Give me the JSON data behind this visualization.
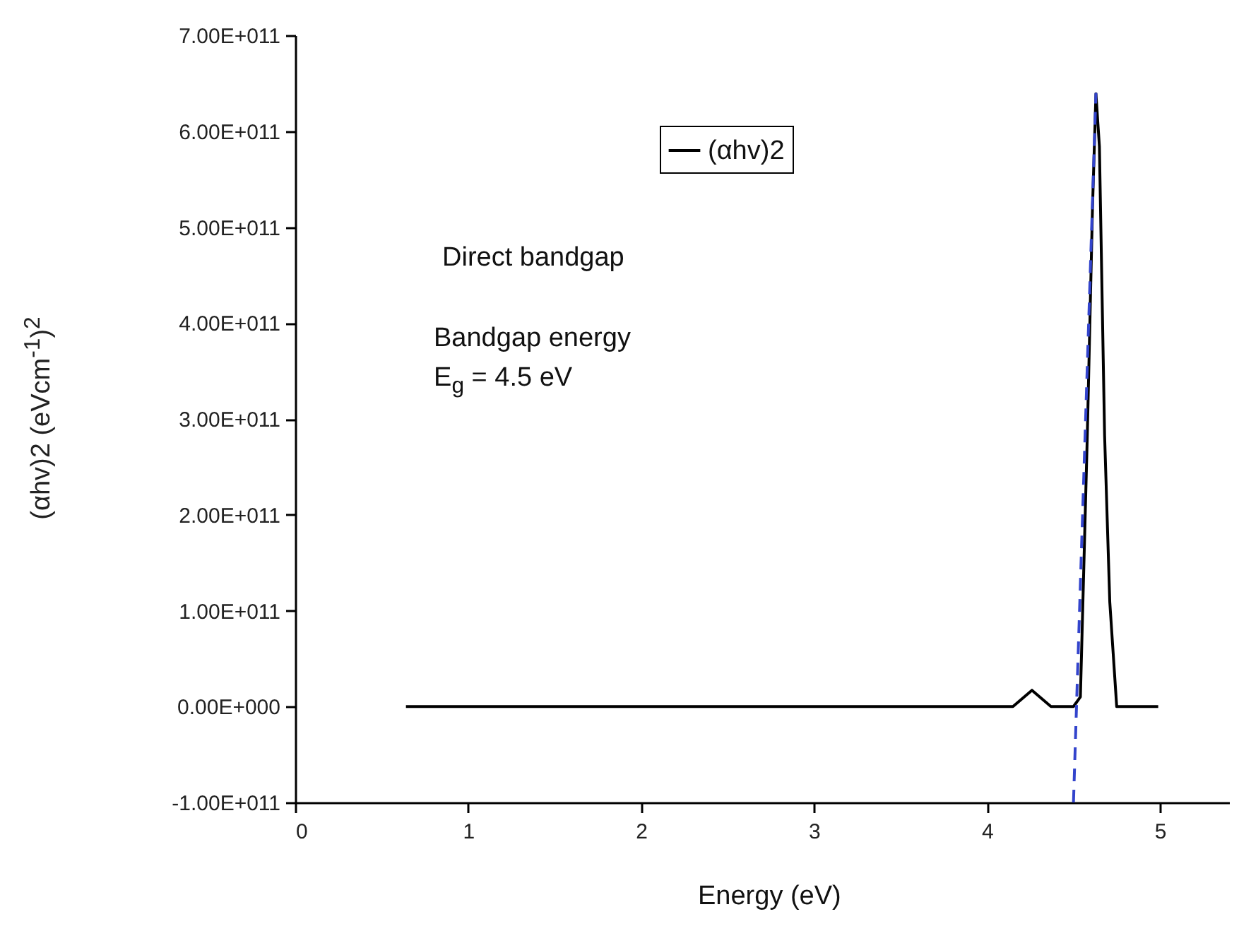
{
  "chart_data": {
    "type": "line",
    "xlabel": "Energy (eV)",
    "ylabel": "(αhv)2 (eVcm$^{-1}$)$^{2}$",
    "xlim": [
      0,
      5.4
    ],
    "xticks": [
      0,
      1,
      2,
      3,
      4,
      5
    ],
    "ylim": [
      -100000000000,
      700000000000
    ],
    "yticks": [
      {
        "value": -100000000000,
        "label": "-1.00E+011"
      },
      {
        "value": 0,
        "label": "0.00E+000"
      },
      {
        "value": 100000000000,
        "label": "1.00E+011"
      },
      {
        "value": 200000000000,
        "label": "2.00E+011"
      },
      {
        "value": 300000000000,
        "label": "3.00E+011"
      },
      {
        "value": 400000000000,
        "label": "4.00E+011"
      },
      {
        "value": 500000000000,
        "label": "5.00E+011"
      },
      {
        "value": 600000000000,
        "label": "6.00E+011"
      },
      {
        "value": 700000000000,
        "label": "7.00E+011"
      }
    ],
    "grid": false,
    "legend": "top right",
    "marker": "none",
    "annotations": [
      "Direct bandgap",
      "Bandgap energy",
      "E$_{g}$ = 4.5 eV"
    ],
    "series": [
      {
        "name": "(αhv)2",
        "color": "#000000",
        "x": [
          0.64,
          4.15,
          4.26,
          4.37,
          4.5,
          4.54,
          4.58,
          4.61,
          4.63,
          4.65,
          4.68,
          4.71,
          4.75,
          4.99
        ],
        "values": [
          0,
          0,
          17000000000,
          0,
          0,
          10000000000,
          283000000000,
          520000000000,
          639000000000,
          584000000000,
          283000000000,
          109000000000,
          0,
          0
        ]
      },
      {
        "type": "line",
        "color": "#3344cc",
        "line_style": "dashed",
        "x": [
          4.5,
          4.63
        ],
        "values": [
          -100000000000,
          640000000000
        ]
      }
    ]
  }
}
